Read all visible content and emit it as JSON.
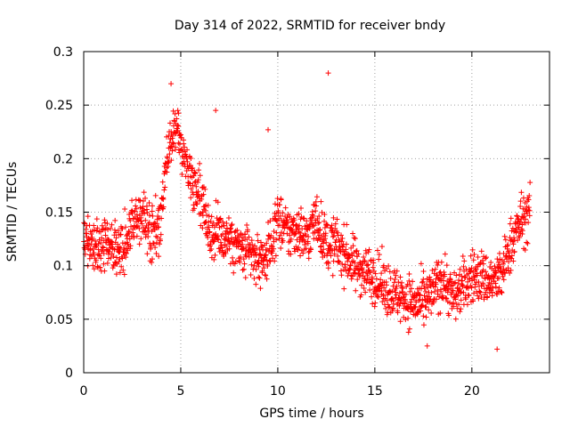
{
  "chart_data": {
    "type": "scatter",
    "title": "Day 314 of 2022, SRMTID for receiver bndy",
    "xlabel": "GPS time / hours",
    "ylabel": "SRMTID / TECUs",
    "xlim": [
      0,
      24
    ],
    "ylim": [
      0,
      0.3
    ],
    "xticks": [
      0,
      5,
      10,
      15,
      20
    ],
    "xtick_labels": [
      "0",
      "5",
      "10",
      "15",
      "20"
    ],
    "yticks": [
      0,
      0.05,
      0.1,
      0.15,
      0.2,
      0.25,
      0.3
    ],
    "ytick_labels": [
      "0",
      "0.05",
      "0.1",
      "0.15",
      "0.2",
      "0.25",
      "0.3"
    ],
    "grid": true,
    "marker": "+",
    "color": "#ff0000",
    "series": [
      {
        "name": "bndy",
        "trend_x": [
          0,
          0.5,
          1,
          1.5,
          2,
          2.5,
          3,
          3.5,
          4,
          4.3,
          4.8,
          5.2,
          5.6,
          6,
          6.5,
          7,
          7.5,
          8,
          8.5,
          9,
          9.5,
          10,
          10.5,
          11,
          11.5,
          12,
          12.5,
          13,
          13.5,
          14,
          14.5,
          15,
          15.5,
          16,
          16.5,
          17,
          17.5,
          18,
          18.5,
          19,
          19.5,
          20,
          20.5,
          21,
          21.5,
          22,
          22.5,
          23
        ],
        "trend_y": [
          0.13,
          0.115,
          0.12,
          0.12,
          0.115,
          0.14,
          0.145,
          0.13,
          0.14,
          0.2,
          0.23,
          0.2,
          0.18,
          0.17,
          0.13,
          0.13,
          0.125,
          0.115,
          0.11,
          0.105,
          0.11,
          0.145,
          0.13,
          0.135,
          0.125,
          0.145,
          0.12,
          0.12,
          0.11,
          0.1,
          0.095,
          0.09,
          0.08,
          0.075,
          0.07,
          0.065,
          0.065,
          0.075,
          0.09,
          0.07,
          0.08,
          0.09,
          0.09,
          0.085,
          0.09,
          0.12,
          0.14,
          0.15
        ],
        "outliers": [
          [
            6.8,
            0.245
          ],
          [
            12.6,
            0.28
          ],
          [
            21.3,
            0.022
          ],
          [
            17.7,
            0.025
          ],
          [
            9.5,
            0.227
          ],
          [
            4.5,
            0.27
          ]
        ]
      }
    ]
  }
}
